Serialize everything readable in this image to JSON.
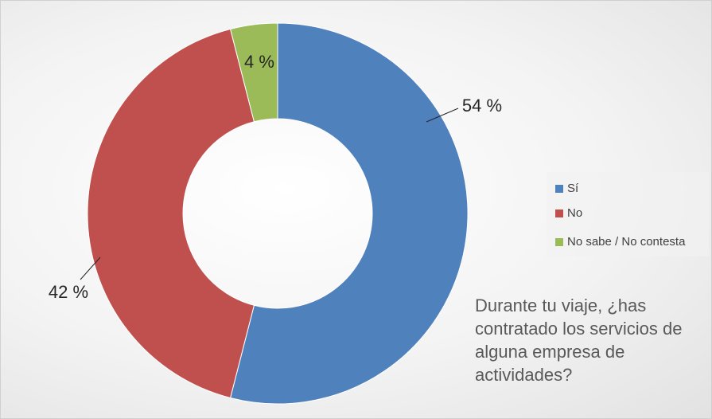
{
  "chart_data": {
    "type": "pie",
    "title": "Durante tu viaje, ¿has contratado los servicios de alguna empresa de actividades?",
    "categories": [
      "Sí",
      "No",
      "No sabe / No contesta"
    ],
    "values": [
      54,
      42,
      4
    ],
    "value_labels": [
      "54 %",
      "42 %",
      "4 %"
    ],
    "colors": [
      "#4f81bd",
      "#c0504d",
      "#9bbb59"
    ],
    "legend": "right"
  }
}
